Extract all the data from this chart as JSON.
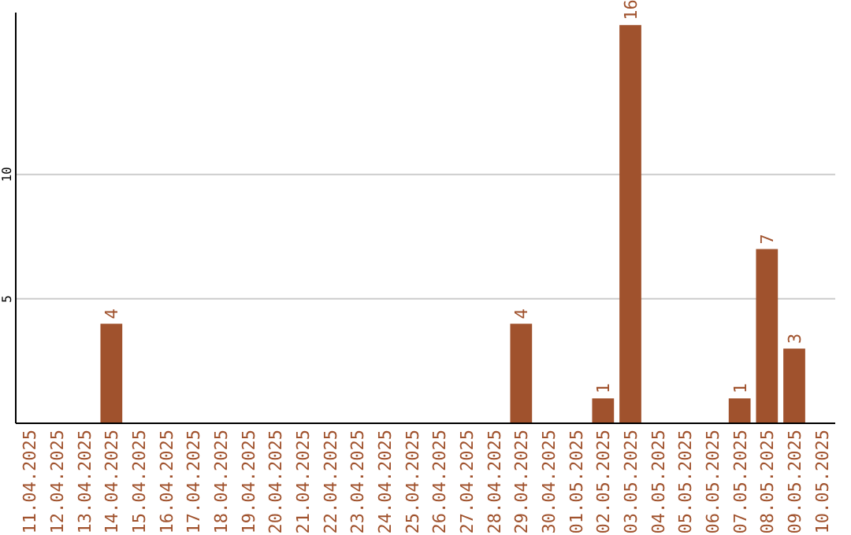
{
  "chart_data": {
    "type": "bar",
    "categories": [
      "11.04.2025",
      "12.04.2025",
      "13.04.2025",
      "14.04.2025",
      "15.04.2025",
      "16.04.2025",
      "17.04.2025",
      "18.04.2025",
      "19.04.2025",
      "20.04.2025",
      "21.04.2025",
      "22.04.2025",
      "23.04.2025",
      "24.04.2025",
      "25.04.2025",
      "26.04.2025",
      "27.04.2025",
      "28.04.2025",
      "29.04.2025",
      "30.04.2025",
      "01.05.2025",
      "02.05.2025",
      "03.05.2025",
      "04.05.2025",
      "05.05.2025",
      "06.05.2025",
      "07.05.2025",
      "08.05.2025",
      "09.05.2025",
      "10.05.2025"
    ],
    "values": [
      0,
      0,
      0,
      4,
      0,
      0,
      0,
      0,
      0,
      0,
      0,
      0,
      0,
      0,
      0,
      0,
      0,
      0,
      4,
      0,
      0,
      1,
      16,
      0,
      0,
      0,
      1,
      7,
      3,
      0
    ],
    "value_labels": [
      null,
      null,
      null,
      "4",
      null,
      null,
      null,
      null,
      null,
      null,
      null,
      null,
      null,
      null,
      null,
      null,
      null,
      null,
      "4",
      null,
      null,
      "1",
      "16",
      null,
      null,
      null,
      "1",
      "7",
      "3",
      null
    ],
    "color": "#a0522d",
    "ylim": [
      0,
      16.5
    ],
    "yticks": [
      5,
      10
    ],
    "grid": "y"
  }
}
